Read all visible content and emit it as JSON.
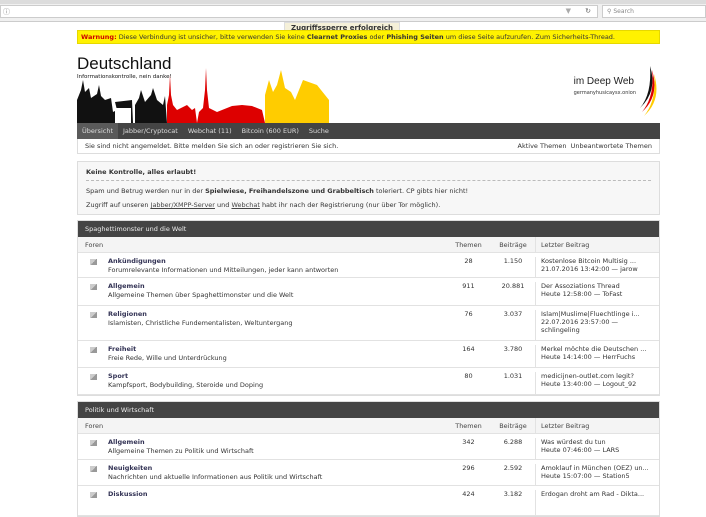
{
  "browser": {
    "info_icon": "info-icon",
    "search_placeholder": "Search",
    "dropdown_icon": "▼",
    "reload_icon": "↻"
  },
  "toast": "Zugriffssperre erfolgreich aufgehoben",
  "warning": {
    "label": "Warnung:",
    "t1": " Diese Verbindung ist unsicher, bitte verwenden Sie keine ",
    "b1": "Clearnet Proxies",
    "t2": " oder ",
    "b2": "Phishing Seiten",
    "t3": " um diese Seite aufzurufen. Zum Sicherheits-Thread."
  },
  "header": {
    "title": "Deutschland",
    "subtitle": "Informationskontrolle, nein danke!",
    "deep": "im Deep Web",
    "onion": "germanyhusicaysx.onion",
    "colors": {
      "black": "#111111",
      "red": "#dd0000",
      "gold": "#ffce00"
    }
  },
  "nav": [
    "Übersicht",
    "Jabber/Cryptocat",
    "Webchat (11)",
    "Bitcoin (600 EUR)",
    "Suche"
  ],
  "login": {
    "text": "Sie sind nicht angemeldet. Bitte melden Sie sich an oder registrieren Sie sich.",
    "active": "Aktive Themen",
    "unanswered": "Unbeantwortete Themen"
  },
  "info": {
    "title": "Keine Kontrolle, alles erlaubt!",
    "p1a": "Spam und Betrug werden nur in der ",
    "p1b": "Spielwiese, Freihandelszone und Grabbeltisch",
    "p1c": " toleriert. CP gibts hier nicht!",
    "p2a": "Zugriff auf unseren ",
    "p2link1": "Jabber/XMPP-Server",
    "p2b": " und ",
    "p2link2": "Webchat",
    "p2c": " habt ihr nach der Registrierung (nur über Tor möglich)."
  },
  "columns": {
    "forums": "Foren",
    "topics": "Themen",
    "posts": "Beiträge",
    "last": "Letzter Beitrag"
  },
  "sections": [
    {
      "title": "Spaghettimonster und die Welt",
      "forums": [
        {
          "name": "Ankündigungen",
          "desc": "Forumrelevante Informationen und Mitteilungen, jeder kann antworten",
          "topics": "28",
          "posts": "1.150",
          "last_title": "Kostenlose Bitcoin Multisig ...",
          "last_meta": "21.07.2016 13:42:00 — jarow"
        },
        {
          "name": "Allgemein",
          "desc": "Allgemeine Themen über Spaghettimonster und die Welt",
          "topics": "911",
          "posts": "20.881",
          "last_title": "Der Assoziations Thread",
          "last_meta": "Heute 12:58:00 — ToFast"
        },
        {
          "name": "Religionen",
          "desc": "Islamisten, Christliche Fundementalisten, Weltuntergang",
          "topics": "76",
          "posts": "3.037",
          "last_title": "Islam|Muslime|Fluechtlinge i...",
          "last_meta": "22.07.2016 23:57:00 —",
          "last_user": "schlingeling"
        },
        {
          "name": "Freiheit",
          "desc": "Freie Rede, Wille und Unterdrückung",
          "topics": "164",
          "posts": "3.780",
          "last_title": "Merkel möchte die Deutschen ...",
          "last_meta": "Heute 14:14:00 — HerrFuchs"
        },
        {
          "name": "Sport",
          "desc": "Kampfsport, Bodybuilding, Steroide und Doping",
          "topics": "80",
          "posts": "1.031",
          "last_title": "medicijnen-outlet.com legit?",
          "last_meta": "Heute 13:40:00 — Logout_92"
        }
      ]
    },
    {
      "title": "Politik und Wirtschaft",
      "forums": [
        {
          "name": "Allgemein",
          "desc": "Allgemeine Themen zu Politik und Wirtschaft",
          "topics": "342",
          "posts": "6.288",
          "last_title": "Was würdest du tun",
          "last_meta": "Heute 07:46:00 — LARS"
        },
        {
          "name": "Neuigkeiten",
          "desc": "Nachrichten und aktuelle Informationen aus Politik und Wirtschaft",
          "topics": "296",
          "posts": "2.592",
          "last_title": "Amoklauf in München (OEZ) un...",
          "last_meta": "Heute 15:07:00 — Station5"
        },
        {
          "name": "Diskussion",
          "desc": "",
          "topics": "424",
          "posts": "3.182",
          "last_title": "Erdogan droht am Rad - Dikta...",
          "last_meta": ""
        }
      ]
    }
  ]
}
